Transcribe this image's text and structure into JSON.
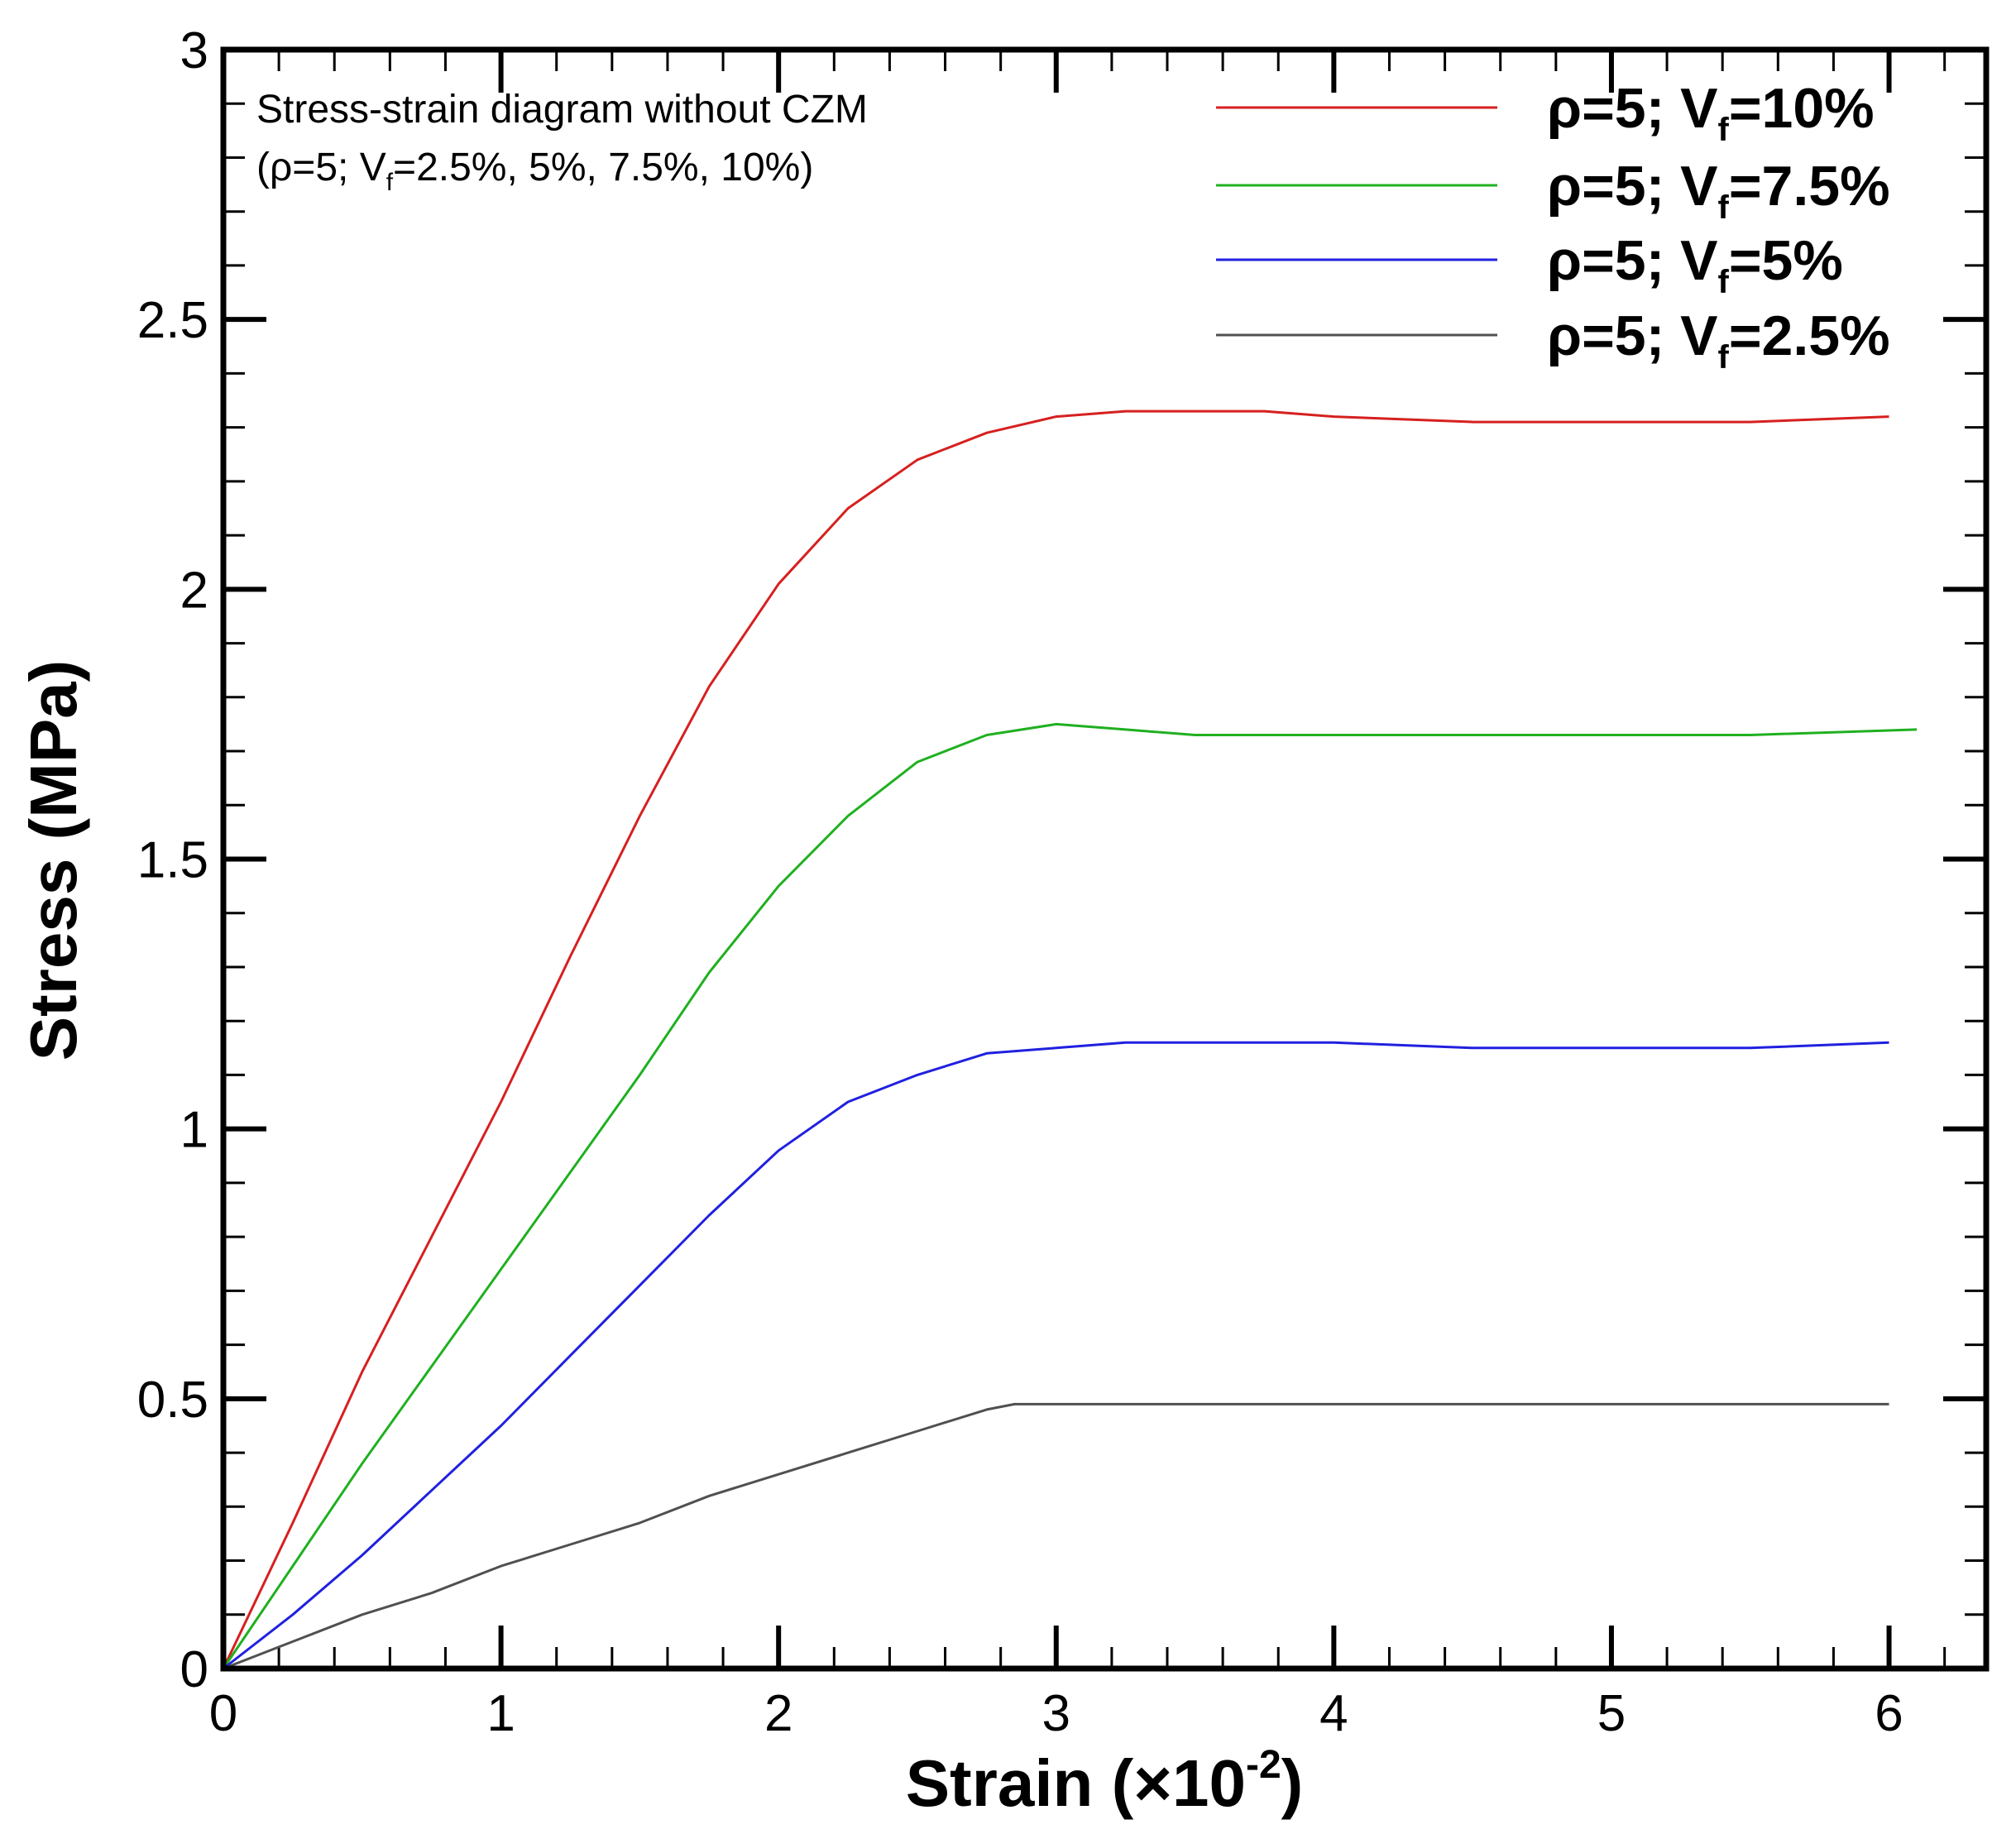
{
  "chart_data": {
    "type": "line",
    "title": "",
    "annotation": {
      "line1": "Stress-strain diagram without CZM",
      "line2_prefix": "(ρ=5; V",
      "line2_sub": "f",
      "line2_suffix": "=2.5%, 5%, 7.5%, 10%)"
    },
    "xlabel": {
      "main": "Strain (×10",
      "sup": "-2",
      "close": ")"
    },
    "ylabel": "Stress (MPa)",
    "xlim": [
      0,
      6.35
    ],
    "ylim": [
      0,
      3
    ],
    "x_ticks": [
      0,
      1,
      2,
      3,
      4,
      5,
      6
    ],
    "x_tick_labels": [
      "0",
      "1",
      "2",
      "3",
      "4",
      "5",
      "6"
    ],
    "y_ticks": [
      0,
      0.5,
      1,
      1.5,
      2,
      2.5,
      3
    ],
    "y_tick_labels": [
      "0",
      "0.5",
      "1",
      "1.5",
      "2",
      "2.5",
      "3"
    ],
    "grid": false,
    "legend_position": "top-right",
    "series": [
      {
        "name": "ρ=5; Vf=10%",
        "label_prefix": "ρ=5; V",
        "label_sub": "f",
        "label_suffix": "=10%",
        "color": "#d62020",
        "x": [
          0,
          0.25,
          0.5,
          0.75,
          1.0,
          1.25,
          1.5,
          1.75,
          2.0,
          2.25,
          2.5,
          2.75,
          3.0,
          3.25,
          3.5,
          3.75,
          4.0,
          4.5,
          5.0,
          5.5,
          6.0
        ],
        "y": [
          0,
          0.27,
          0.55,
          0.8,
          1.05,
          1.32,
          1.58,
          1.82,
          2.01,
          2.15,
          2.24,
          2.29,
          2.32,
          2.33,
          2.33,
          2.33,
          2.32,
          2.31,
          2.31,
          2.31,
          2.32
        ]
      },
      {
        "name": "ρ=5; Vf=7.5%",
        "label_prefix": "ρ=5; V",
        "label_sub": "f",
        "label_suffix": "=7.5%",
        "color": "#20b020",
        "x": [
          0,
          0.25,
          0.5,
          0.75,
          1.0,
          1.25,
          1.5,
          1.75,
          2.0,
          2.25,
          2.5,
          2.75,
          3.0,
          3.25,
          3.5,
          3.75,
          4.0,
          4.5,
          5.0,
          5.5,
          6.1
        ],
        "y": [
          0,
          0.19,
          0.38,
          0.56,
          0.74,
          0.92,
          1.1,
          1.29,
          1.45,
          1.58,
          1.68,
          1.73,
          1.75,
          1.74,
          1.73,
          1.73,
          1.73,
          1.73,
          1.73,
          1.73,
          1.74
        ]
      },
      {
        "name": "ρ=5; Vf=5%",
        "label_prefix": "ρ=5; V",
        "label_sub": "f",
        "label_suffix": "=5%",
        "color": "#2020e0",
        "x": [
          0,
          0.25,
          0.5,
          0.75,
          1.0,
          1.25,
          1.5,
          1.75,
          2.0,
          2.25,
          2.5,
          2.75,
          3.0,
          3.25,
          3.5,
          3.75,
          4.0,
          4.5,
          5.0,
          5.5,
          6.0
        ],
        "y": [
          0,
          0.1,
          0.21,
          0.33,
          0.45,
          0.58,
          0.71,
          0.84,
          0.96,
          1.05,
          1.1,
          1.14,
          1.15,
          1.16,
          1.16,
          1.16,
          1.16,
          1.15,
          1.15,
          1.15,
          1.16
        ]
      },
      {
        "name": "ρ=5; Vf=2.5%",
        "label_prefix": "ρ=5; V",
        "label_sub": "f",
        "label_suffix": "=2.5%",
        "color": "#505050",
        "x": [
          0,
          0.25,
          0.5,
          0.75,
          1.0,
          1.25,
          1.5,
          1.75,
          2.0,
          2.25,
          2.5,
          2.75,
          2.85,
          3.0,
          3.5,
          4.0,
          4.5,
          5.0,
          5.5,
          6.0
        ],
        "y": [
          0,
          0.05,
          0.1,
          0.14,
          0.19,
          0.23,
          0.27,
          0.32,
          0.36,
          0.4,
          0.44,
          0.48,
          0.49,
          0.49,
          0.49,
          0.49,
          0.49,
          0.49,
          0.49,
          0.49
        ]
      }
    ]
  }
}
